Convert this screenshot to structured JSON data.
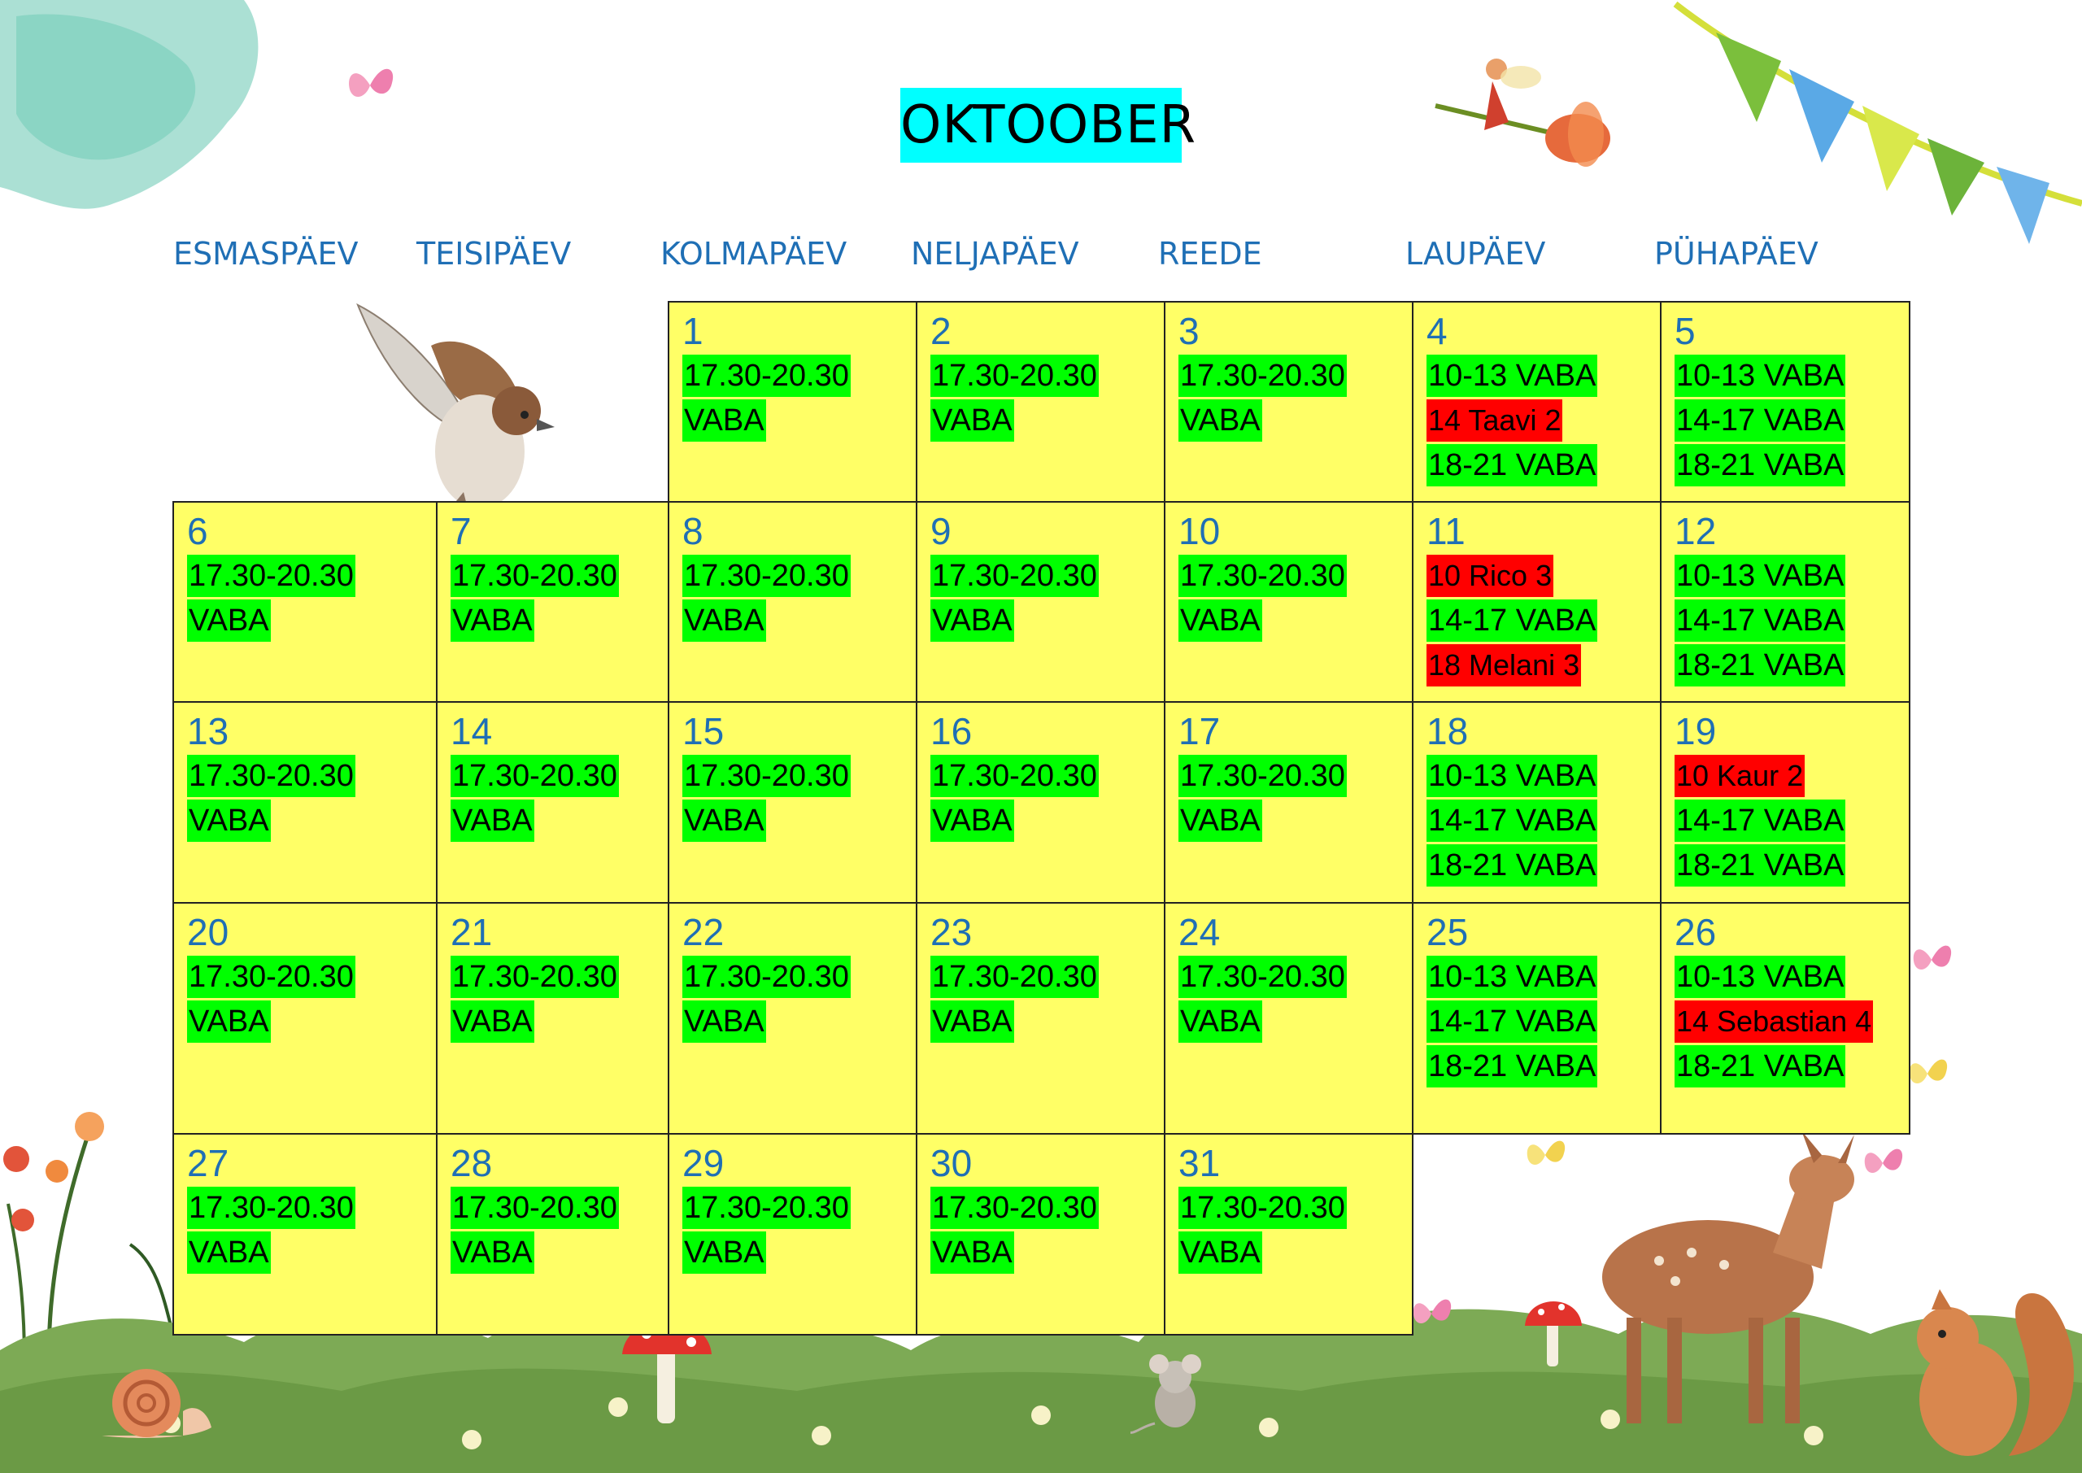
{
  "title": "OKTOOBER",
  "weekdays": [
    "ESMASPÄEV",
    "TEISIPÄEV",
    "KOLMAPÄEV",
    "NELJAPÄEV",
    "REEDE",
    "LAUPÄEV",
    "PÜHAPÄEV"
  ],
  "colors": {
    "title_bg": "#00ffff",
    "cell_bg": "#ffff66",
    "free": "#00ff00",
    "booked": "#ff0000",
    "weekday_text": "#1f6fb5"
  },
  "days": [
    {
      "day": "1",
      "slots": [
        {
          "text": "17.30-20.30",
          "status": "free"
        },
        {
          "text": "VABA",
          "status": "free"
        }
      ]
    },
    {
      "day": "2",
      "slots": [
        {
          "text": "17.30-20.30",
          "status": "free"
        },
        {
          "text": "VABA",
          "status": "free"
        }
      ]
    },
    {
      "day": "3",
      "slots": [
        {
          "text": "17.30-20.30",
          "status": "free"
        },
        {
          "text": "VABA",
          "status": "free"
        }
      ]
    },
    {
      "day": "4",
      "slots": [
        {
          "text": "10-13 VABA",
          "status": "free"
        },
        {
          "text": "14 Taavi 2",
          "status": "booked"
        },
        {
          "text": "18-21 VABA",
          "status": "free"
        }
      ]
    },
    {
      "day": "5",
      "slots": [
        {
          "text": "10-13 VABA",
          "status": "free"
        },
        {
          "text": "14-17 VABA",
          "status": "free"
        },
        {
          "text": "18-21 VABA",
          "status": "free"
        }
      ]
    },
    {
      "day": "6",
      "slots": [
        {
          "text": "17.30-20.30",
          "status": "free"
        },
        {
          "text": "VABA",
          "status": "free"
        }
      ]
    },
    {
      "day": "7",
      "slots": [
        {
          "text": "17.30-20.30",
          "status": "free"
        },
        {
          "text": "VABA",
          "status": "free"
        }
      ]
    },
    {
      "day": "8",
      "slots": [
        {
          "text": "17.30-20.30",
          "status": "free"
        },
        {
          "text": "VABA",
          "status": "free"
        }
      ]
    },
    {
      "day": "9",
      "slots": [
        {
          "text": "17.30-20.30",
          "status": "free"
        },
        {
          "text": "VABA",
          "status": "free"
        }
      ]
    },
    {
      "day": "10",
      "slots": [
        {
          "text": "17.30-20.30",
          "status": "free"
        },
        {
          "text": "VABA",
          "status": "free"
        }
      ]
    },
    {
      "day": "11",
      "slots": [
        {
          "text": "10 Rico 3",
          "status": "booked"
        },
        {
          "text": "14-17 VABA",
          "status": "free"
        },
        {
          "text": "18 Melani 3",
          "status": "booked"
        }
      ]
    },
    {
      "day": "12",
      "slots": [
        {
          "text": "10-13 VABA",
          "status": "free"
        },
        {
          "text": "14-17 VABA",
          "status": "free"
        },
        {
          "text": "18-21 VABA",
          "status": "free"
        }
      ]
    },
    {
      "day": "13",
      "slots": [
        {
          "text": "17.30-20.30",
          "status": "free"
        },
        {
          "text": "VABA",
          "status": "free"
        }
      ]
    },
    {
      "day": "14",
      "slots": [
        {
          "text": "17.30-20.30",
          "status": "free"
        },
        {
          "text": "VABA",
          "status": "free"
        }
      ]
    },
    {
      "day": "15",
      "slots": [
        {
          "text": "17.30-20.30",
          "status": "free"
        },
        {
          "text": "VABA",
          "status": "free"
        }
      ]
    },
    {
      "day": "16",
      "slots": [
        {
          "text": "17.30-20.30",
          "status": "free"
        },
        {
          "text": "VABA",
          "status": "free"
        }
      ]
    },
    {
      "day": "17",
      "slots": [
        {
          "text": "17.30-20.30",
          "status": "free"
        },
        {
          "text": "VABA",
          "status": "free"
        }
      ]
    },
    {
      "day": "18",
      "slots": [
        {
          "text": "10-13 VABA",
          "status": "free"
        },
        {
          "text": "14-17 VABA",
          "status": "free"
        },
        {
          "text": "18-21 VABA",
          "status": "free"
        }
      ]
    },
    {
      "day": "19",
      "slots": [
        {
          "text": "10 Kaur 2",
          "status": "booked"
        },
        {
          "text": "14-17 VABA",
          "status": "free"
        },
        {
          "text": "18-21 VABA",
          "status": "free"
        }
      ]
    },
    {
      "day": "20",
      "slots": [
        {
          "text": "17.30-20.30",
          "status": "free"
        },
        {
          "text": "VABA",
          "status": "free"
        }
      ]
    },
    {
      "day": "21",
      "slots": [
        {
          "text": "17.30-20.30",
          "status": "free"
        },
        {
          "text": "VABA",
          "status": "free"
        }
      ]
    },
    {
      "day": "22",
      "slots": [
        {
          "text": "17.30-20.30",
          "status": "free"
        },
        {
          "text": "VABA",
          "status": "free"
        }
      ]
    },
    {
      "day": "23",
      "slots": [
        {
          "text": "17.30-20.30",
          "status": "free"
        },
        {
          "text": "VABA",
          "status": "free"
        }
      ]
    },
    {
      "day": "24",
      "slots": [
        {
          "text": "17.30-20.30",
          "status": "free"
        },
        {
          "text": "VABA",
          "status": "free"
        }
      ]
    },
    {
      "day": "25",
      "slots": [
        {
          "text": "10-13 VABA",
          "status": "free"
        },
        {
          "text": "14-17 VABA",
          "status": "free"
        },
        {
          "text": "18-21 VABA",
          "status": "free"
        }
      ]
    },
    {
      "day": "26",
      "slots": [
        {
          "text": "10-13 VABA",
          "status": "free"
        },
        {
          "text": "14 Sebastian 4",
          "status": "booked"
        },
        {
          "text": "18-21 VABA",
          "status": "free"
        }
      ]
    },
    {
      "day": "27",
      "slots": [
        {
          "text": "17.30-20.30",
          "status": "free"
        },
        {
          "text": "VABA",
          "status": "free"
        }
      ]
    },
    {
      "day": "28",
      "slots": [
        {
          "text": "17.30-20.30",
          "status": "free"
        },
        {
          "text": "VABA",
          "status": "free"
        }
      ]
    },
    {
      "day": "29",
      "slots": [
        {
          "text": "17.30-20.30",
          "status": "free"
        },
        {
          "text": "VABA",
          "status": "free"
        }
      ]
    },
    {
      "day": "30",
      "slots": [
        {
          "text": "17.30-20.30",
          "status": "free"
        },
        {
          "text": "VABA",
          "status": "free"
        }
      ]
    },
    {
      "day": "31",
      "slots": [
        {
          "text": "17.30-20.30",
          "status": "free"
        },
        {
          "text": "VABA",
          "status": "free"
        }
      ]
    }
  ]
}
